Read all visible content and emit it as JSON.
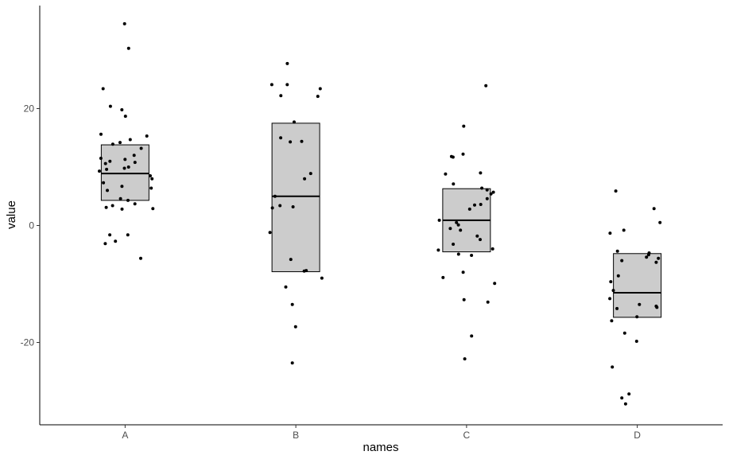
{
  "chart_data": {
    "type": "boxplot",
    "title": "",
    "xlabel": "names",
    "ylabel": "value",
    "categories": [
      "A",
      "B",
      "C",
      "D"
    ],
    "ylim": [
      -34,
      38
    ],
    "yticks": [
      -20,
      0,
      20
    ],
    "ytick_labels": [
      "-20",
      "0",
      "20"
    ],
    "grid": false,
    "colors": {
      "box_fill": "#cccccc",
      "box_stroke": "#000000",
      "point": "#000000",
      "axis": "#000000"
    },
    "boxes": [
      {
        "category": "A",
        "q1": 4.3,
        "median": 8.9,
        "q3": 13.8
      },
      {
        "category": "B",
        "q1": -7.9,
        "median": 5.0,
        "q3": 17.5
      },
      {
        "category": "C",
        "q1": -4.5,
        "median": 0.9,
        "q3": 6.3
      },
      {
        "category": "D",
        "q1": -15.7,
        "median": -11.5,
        "q3": -4.8
      }
    ],
    "points": [
      {
        "category": "A",
        "values": [
          34.5,
          30.3,
          23.4,
          20.4,
          19.8,
          18.7,
          15.6,
          15.3,
          14.7,
          14.2,
          13.9,
          13.2,
          12.0,
          11.5,
          11.3,
          11.0,
          10.8,
          10.6,
          10.0,
          9.8,
          9.6,
          9.3,
          8.5,
          8.0,
          7.3,
          6.7,
          6.4,
          6.0,
          4.6,
          4.3,
          3.7,
          3.4,
          3.1,
          2.9,
          2.8,
          -1.6,
          -1.6,
          -2.7,
          -3.1,
          -5.6
        ]
      },
      {
        "category": "B",
        "values": [
          27.7,
          24.1,
          24.1,
          23.4,
          22.2,
          22.1,
          17.7,
          15.0,
          14.4,
          14.3,
          8.9,
          8.0,
          5.0,
          3.4,
          3.2,
          3.0,
          -1.2,
          -5.8,
          -7.7,
          -7.8,
          -9.0,
          -10.5,
          -13.5,
          -17.3,
          -23.5
        ]
      },
      {
        "category": "C",
        "values": [
          23.9,
          17.0,
          12.2,
          11.7,
          11.8,
          9.0,
          8.8,
          7.1,
          6.4,
          6.1,
          5.7,
          5.4,
          4.6,
          3.6,
          3.5,
          2.8,
          0.9,
          0.5,
          0.1,
          -0.5,
          -0.8,
          -1.8,
          -2.4,
          -3.2,
          -4.0,
          -4.2,
          -4.9,
          -5.1,
          -8.0,
          -8.9,
          -9.9,
          -12.7,
          -13.1,
          -18.9,
          -22.8
        ]
      },
      {
        "category": "D",
        "values": [
          5.9,
          2.9,
          0.5,
          -0.8,
          -1.3,
          -4.4,
          -4.7,
          -5.0,
          -5.4,
          -5.6,
          -6.0,
          -6.3,
          -8.6,
          -9.6,
          -11.1,
          -12.5,
          -13.5,
          -13.8,
          -14.0,
          -14.2,
          -15.6,
          -16.3,
          -18.4,
          -19.8,
          -24.2,
          -28.8,
          -29.5,
          -30.5
        ]
      }
    ]
  }
}
